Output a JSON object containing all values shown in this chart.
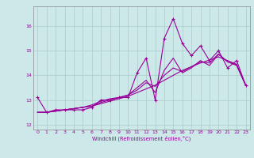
{
  "x": [
    0,
    1,
    2,
    3,
    4,
    5,
    6,
    7,
    8,
    9,
    10,
    11,
    12,
    13,
    14,
    15,
    16,
    17,
    18,
    19,
    20,
    21,
    22,
    23
  ],
  "y_main": [
    13.1,
    12.5,
    12.6,
    12.6,
    12.6,
    12.6,
    12.7,
    13.0,
    13.0,
    13.1,
    13.1,
    14.1,
    14.7,
    13.0,
    15.5,
    16.3,
    15.3,
    14.8,
    15.2,
    14.6,
    15.0,
    14.3,
    14.6,
    13.6
  ],
  "y_line2": [
    12.5,
    12.5,
    12.55,
    12.6,
    12.65,
    12.7,
    12.75,
    12.85,
    12.95,
    13.05,
    13.15,
    13.3,
    13.45,
    13.6,
    13.8,
    14.0,
    14.2,
    14.35,
    14.5,
    14.62,
    14.75,
    14.6,
    14.45,
    13.6
  ],
  "y_line3": [
    12.5,
    12.5,
    12.55,
    12.6,
    12.65,
    12.7,
    12.75,
    12.9,
    13.0,
    13.1,
    13.2,
    13.5,
    13.8,
    13.3,
    14.2,
    14.7,
    14.1,
    14.3,
    14.6,
    14.4,
    14.85,
    14.55,
    14.4,
    13.6
  ],
  "y_line4": [
    12.5,
    12.5,
    12.55,
    12.6,
    12.65,
    12.7,
    12.8,
    12.95,
    13.05,
    13.1,
    13.2,
    13.4,
    13.7,
    13.55,
    14.0,
    14.3,
    14.15,
    14.35,
    14.55,
    14.5,
    14.87,
    14.55,
    14.43,
    13.6
  ],
  "color": "#990099",
  "bg_color": "#cce8e8",
  "grid_color": "#aacccc",
  "xlabel": "Windchill (Refroidissement éolien,°C)",
  "ylim": [
    11.8,
    16.8
  ],
  "xlim": [
    -0.5,
    23.5
  ],
  "yticks": [
    12,
    13,
    14,
    15,
    16
  ],
  "xticks": [
    0,
    1,
    2,
    3,
    4,
    5,
    6,
    7,
    8,
    9,
    10,
    11,
    12,
    13,
    14,
    15,
    16,
    17,
    18,
    19,
    20,
    21,
    22,
    23
  ]
}
